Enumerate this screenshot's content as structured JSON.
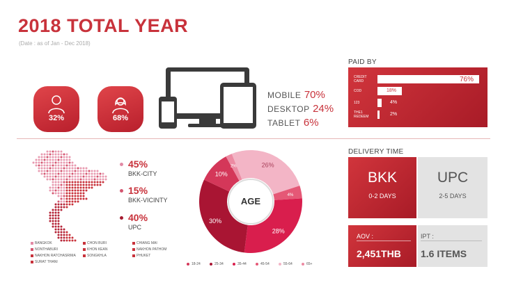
{
  "title": "2018 TOTAL YEAR",
  "subtitle": "(Date : as of Jan - Dec 2018)",
  "gender": {
    "male_pct": "32%",
    "female_pct": "68%"
  },
  "devices": [
    {
      "label": "MOBILE",
      "value": "70%"
    },
    {
      "label": "DESKTOP",
      "value": "24%"
    },
    {
      "label": "TABLET",
      "value": "6%"
    }
  ],
  "paid_by": {
    "title": "PAID BY",
    "rows": [
      {
        "label": "CREDIT CARD",
        "value": "76%",
        "fraction": 0.76
      },
      {
        "label": "COD",
        "value": "18%",
        "fraction": 0.18
      },
      {
        "label": "123",
        "value": "4%",
        "fraction": 0.04
      },
      {
        "label": "THE1 REDEEM",
        "value": "2%",
        "fraction": 0.02
      }
    ]
  },
  "areas": [
    {
      "pct": "45%",
      "name": "BKK-CITY",
      "color": "#e28aa5"
    },
    {
      "pct": "15%",
      "name": "BKK-VICINTY",
      "color": "#d4556f"
    },
    {
      "pct": "40%",
      "name": "UPC",
      "color": "#a51c30"
    }
  ],
  "provinces": [
    "BANGKOK",
    "NONTHABURI",
    "NAKHON RATCHASRIMA",
    "SURAT THANI",
    "CHON BURI",
    "KHON KEAN",
    "SONGKHLA",
    "CHIANG MAI",
    "NAKHON PATHOM",
    "PHUKET"
  ],
  "age": {
    "label": "AGE",
    "slices": [
      {
        "label": "26%",
        "value": 26,
        "color": "#f3b5c6"
      },
      {
        "label": "4%",
        "value": 4,
        "color": "#e55876"
      },
      {
        "label": "28%",
        "value": 28,
        "color": "#d91e4d"
      },
      {
        "label": "30%",
        "value": 30,
        "color": "#a91533"
      },
      {
        "label": "10%",
        "value": 10,
        "color": "#d43759"
      },
      {
        "label": "2%",
        "value": 2,
        "color": "#ec8aa2"
      }
    ],
    "legend": [
      "18-24",
      "25-34",
      "35-44",
      "45-54",
      "55-64",
      "65+"
    ],
    "legend_colors": [
      "#d43759",
      "#a91533",
      "#d91e4d",
      "#e55876",
      "#f3b5c6",
      "#ec8aa2"
    ]
  },
  "delivery": {
    "title": "DELIVERY TIME",
    "bkk": "BKK",
    "bkk_days": "0-2 DAYS",
    "upc": "UPC",
    "upc_days": "2-5 DAYS"
  },
  "aov": {
    "label": "AOV :",
    "value": "2,451THB"
  },
  "ipt": {
    "label": "IPT :",
    "value": "1.6 ITEMS"
  }
}
